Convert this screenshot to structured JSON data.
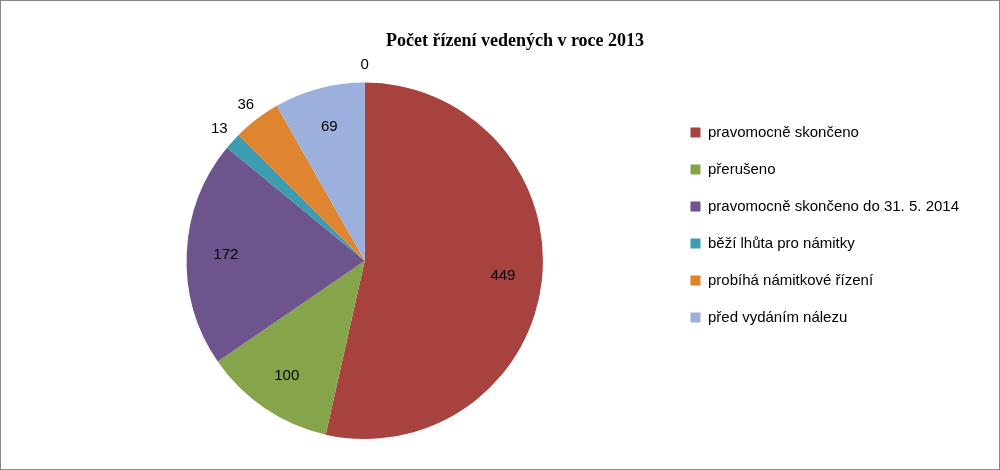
{
  "chart_data": {
    "type": "pie",
    "title": "Počet řízení vedených v roce 2013",
    "categories": [
      "pravomocně skončeno",
      "přerušeno",
      "pravomocně skončeno do 31. 5. 2014",
      "běží lhůta pro námitky",
      "probíhá námitkové řízení",
      "před vydáním nálezu",
      null
    ],
    "values": [
      449,
      100,
      172,
      13,
      36,
      69,
      0
    ],
    "colors": [
      "#a8423f",
      "#86a44a",
      "#6e548d",
      "#3c9db1",
      "#e0852f",
      "#9bb0dc",
      "#7f7f7f"
    ],
    "data_labels": true,
    "legend": "right"
  }
}
